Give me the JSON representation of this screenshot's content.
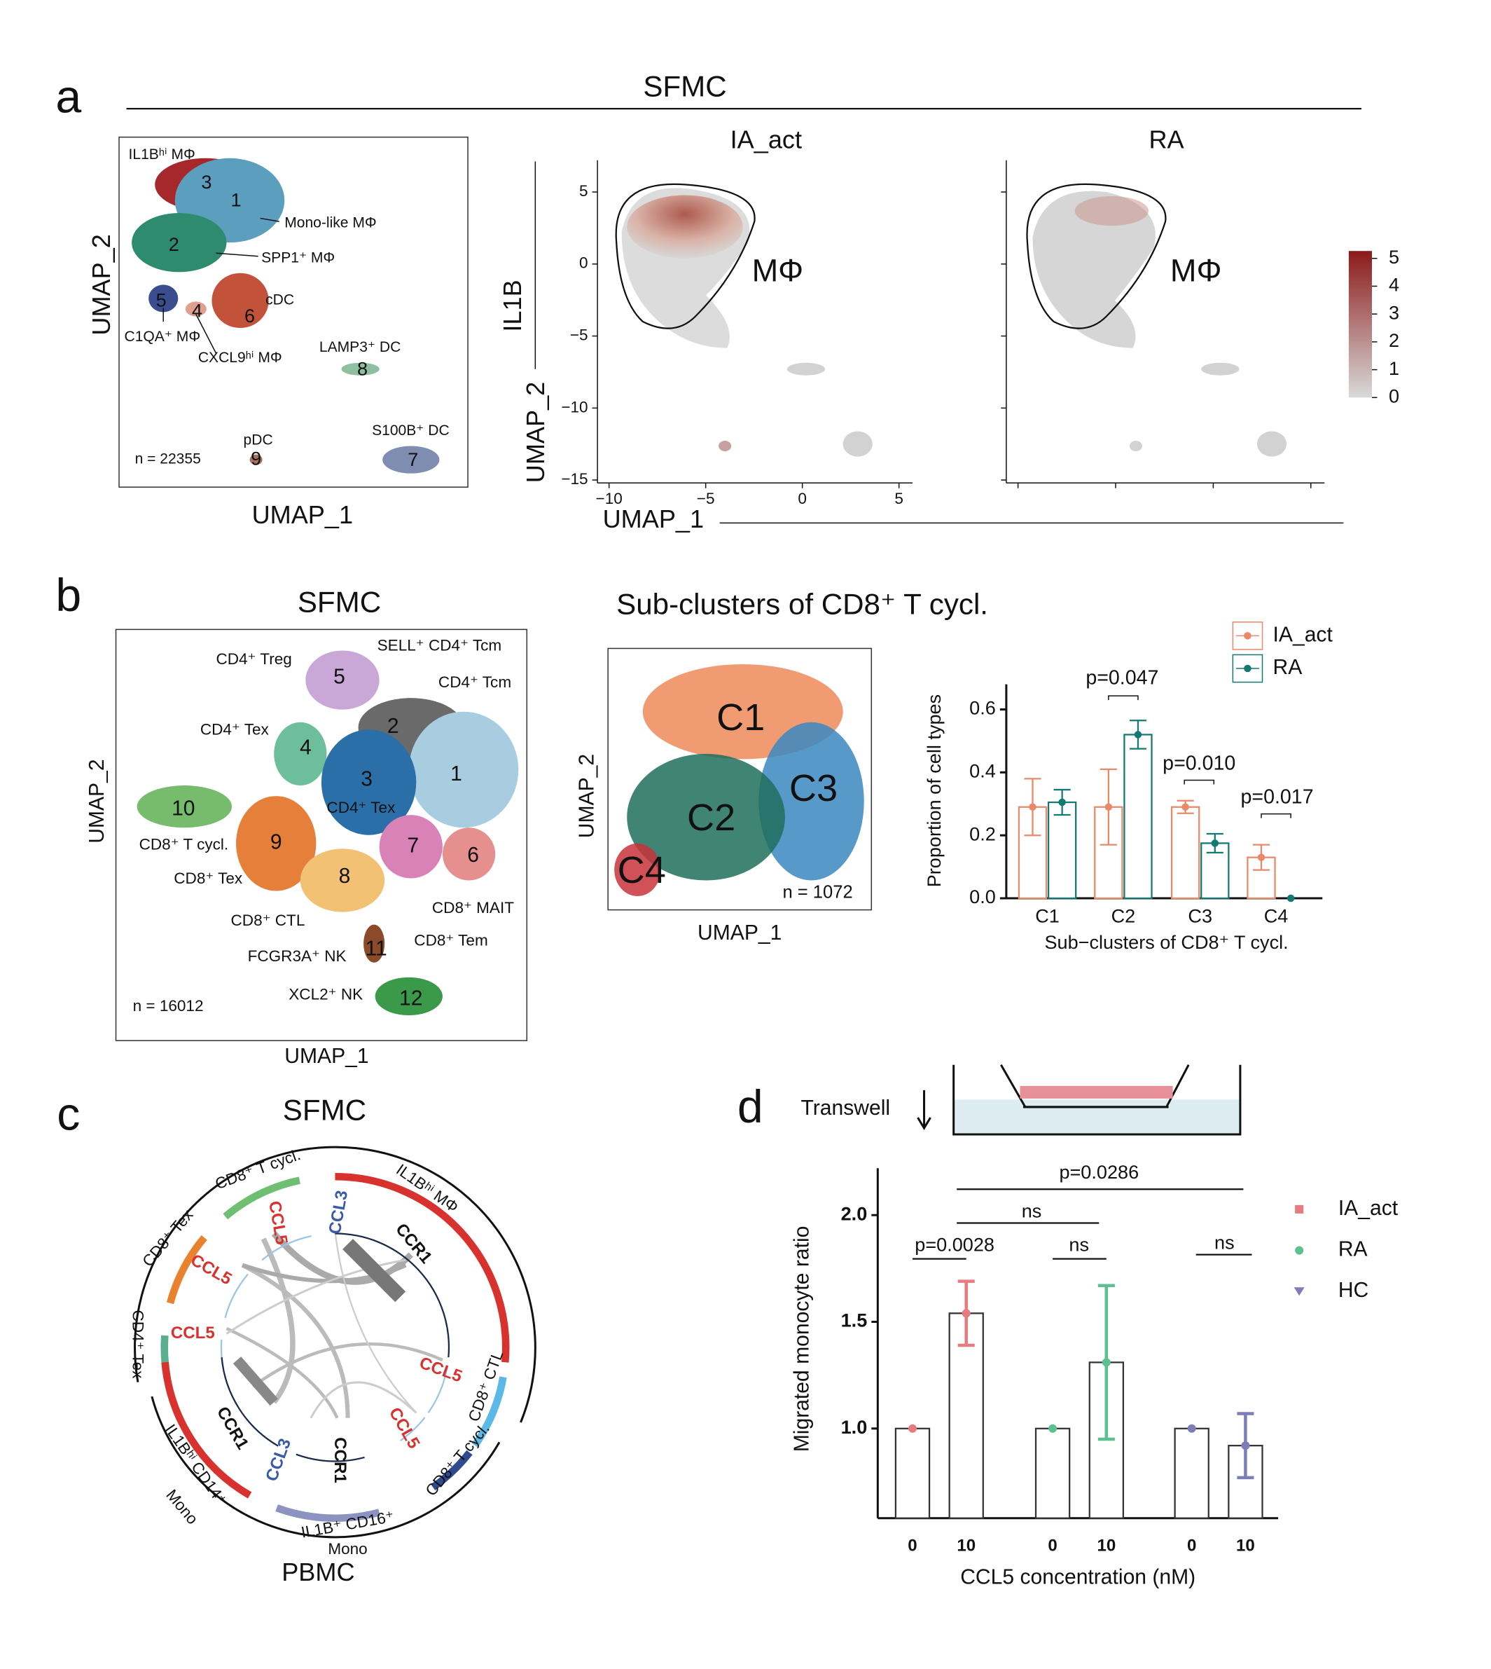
{
  "panel_labels": [
    "a",
    "b",
    "c",
    "d"
  ],
  "panel_a": {
    "title": "SFMC",
    "cluster_umap": {
      "names": [
        "IL1Bʰⁱ MΦ",
        "Mono-like MΦ",
        "SPP1⁺ MΦ",
        "cDC",
        "C1QA⁺ MΦ",
        "CXCL9ʰⁱ MΦ",
        "LAMP3⁺ DC",
        "pDC",
        "S100B⁺ DC"
      ],
      "numbers": [
        "3",
        "1",
        "2",
        "5",
        "4",
        "6",
        "8",
        "9",
        "7"
      ],
      "n": "n = 22355",
      "xlabel": "UMAP_1",
      "ylabel": "UMAP_2"
    },
    "feature_plots": {
      "titles": [
        "IA_act",
        "RA"
      ],
      "gene": "IL1B",
      "xlabel": "UMAP_1",
      "ylabel": "UMAP_2",
      "region_label": "MΦ",
      "xlim": [
        -10.6,
        5.7
      ],
      "ylim": [
        -15.2,
        7.2
      ],
      "xticks": [
        {
          "value": -10,
          "label": "−10"
        },
        {
          "value": -5,
          "label": "−5"
        },
        0,
        5
      ],
      "yticks": [
        5,
        0,
        {
          "value": -5,
          "label": "−5"
        },
        {
          "value": -10,
          "label": "−10"
        },
        {
          "value": -15,
          "label": "−15"
        }
      ],
      "colorbar_lim": [
        0,
        5
      ],
      "colorbar_ticks": [
        0,
        1,
        2,
        3,
        4,
        5
      ]
    }
  },
  "panel_b": {
    "title": "SFMC",
    "cluster_umap": {
      "names": [
        "CD4⁺ Treg",
        "SELL⁺ CD4⁺ Tcm",
        "CD4⁺ Tcm",
        "CD4⁺ Tex",
        "CD4⁺ Tex",
        "CD8⁺ T cycl.",
        "CD8⁺ Tex",
        "CD8⁺ CTL",
        "FCGR3A⁺ NK",
        "XCL2⁺ NK",
        "CD8⁺ MAIT",
        "CD8⁺ Tem"
      ],
      "numbers": [
        "5",
        "2",
        "1",
        "4",
        "3",
        "10",
        "9",
        "7",
        "6",
        "8",
        "11",
        "12"
      ],
      "n": "n = 16012",
      "xlabel": "UMAP_1",
      "ylabel": "UMAP_2"
    },
    "subcluster_umap": {
      "title": "Sub-clusters of CD8⁺ T cycl.",
      "names": [
        "C1",
        "C3",
        "C2",
        "C4"
      ],
      "n": "n = 1072",
      "xlabel": "UMAP_1",
      "ylabel": "UMAP_2"
    }
  },
  "panel_c": {
    "title": "SFMC",
    "bottom_label": "PBMC",
    "cell_types": [
      "CD8⁺ T cycl.",
      "IL1Bʰⁱ MΦ",
      "CD8⁺ Tex",
      "CD4⁺ Tex",
      "CD8⁺ CTL",
      "CD8⁺ T cycl.",
      "IL1Bʰⁱ CD14⁺",
      "Mono",
      "IL1B⁺ CD16⁺",
      "Mono"
    ],
    "genes": [
      "CCL5",
      "CCL3",
      "CCR1",
      "CCL5",
      "CCL5",
      "CCL5",
      "CCL5",
      "CCR1",
      "CCL3",
      "CCR1"
    ]
  },
  "panel_d": {
    "assay": "Transwell"
  },
  "chart_data": [
    {
      "type": "bar",
      "title": null,
      "x_label": "Sub−clusters of CD8⁺ T cycl.",
      "y_label": "Proportion of cell types",
      "categories": [
        "C1",
        "C2",
        "C3",
        "C4"
      ],
      "series": [
        {
          "name": "IA_act",
          "color": "#e8896a",
          "values": [
            0.29,
            0.29,
            0.29,
            0.13
          ],
          "errors": [
            0.09,
            0.12,
            0.02,
            0.04
          ]
        },
        {
          "name": "RA",
          "color": "#137a73",
          "values": [
            0.305,
            0.52,
            0.175,
            0.0
          ],
          "errors": [
            0.04,
            0.045,
            0.03,
            0.0
          ]
        }
      ],
      "ylim": [
        0,
        0.68
      ],
      "yticks": [
        {
          "value": 0,
          "label": "0.0"
        },
        {
          "value": 0.2,
          "label": "0.2"
        },
        {
          "value": 0.4,
          "label": "0.4"
        },
        {
          "value": 0.6,
          "label": "0.6"
        }
      ],
      "annotations": [
        "p=0.047",
        "p=0.010",
        "p=0.017"
      ],
      "legend": "top-right"
    },
    {
      "type": "bar",
      "x_label": "CCL5 concentration (nM)",
      "y_label": "Migrated monocyte  ratio",
      "categories": [
        "0",
        "10"
      ],
      "series": [
        {
          "name": "IA_act",
          "color": "#e87b80",
          "values": [
            1.0,
            1.54
          ],
          "errors": [
            0,
            0.15
          ]
        },
        {
          "name": "RA",
          "color": "#5dc08f",
          "values": [
            1.0,
            1.31
          ],
          "errors": [
            0,
            0.36
          ]
        },
        {
          "name": "HC",
          "color": "#7d7db8",
          "values": [
            1.0,
            0.92
          ],
          "errors": [
            0,
            0.15
          ]
        }
      ],
      "ylim": [
        0.58,
        2.22
      ],
      "yticks": [
        {
          "value": 1,
          "label": "1.0"
        },
        {
          "value": 1.5,
          "label": "1.5"
        },
        {
          "value": 2,
          "label": "2.0"
        }
      ],
      "annotations": [
        "p=0.0286",
        "ns",
        "p=0.0028",
        "ns",
        "ns"
      ],
      "legend": "right"
    }
  ]
}
